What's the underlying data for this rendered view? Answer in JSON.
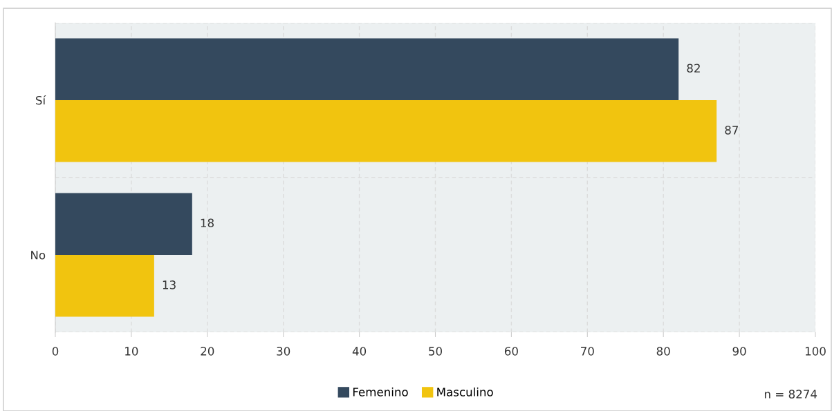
{
  "chart_data": {
    "type": "bar",
    "orientation": "horizontal",
    "categories": [
      "Sí",
      "No"
    ],
    "series": [
      {
        "name": "Femenino",
        "color": "#34495e",
        "values": [
          82,
          18
        ]
      },
      {
        "name": "Masculino",
        "color": "#f1c40f",
        "values": [
          87,
          13
        ]
      }
    ],
    "xlim": [
      0,
      100
    ],
    "xticks": [
      0,
      10,
      20,
      30,
      40,
      50,
      60,
      70,
      80,
      90,
      100
    ],
    "grid": true,
    "legend": "bottom",
    "data_labels": true,
    "annotations": [
      "n = 8274"
    ]
  }
}
